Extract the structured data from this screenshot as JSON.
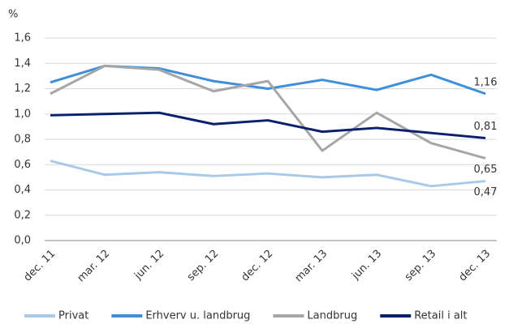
{
  "chart_data": {
    "type": "line",
    "y_label": "%",
    "categories": [
      "dec. 11",
      "mar. 12",
      "jun. 12",
      "sep. 12",
      "dec. 12",
      "mar. 13",
      "jun. 13",
      "sep. 13",
      "dec. 13"
    ],
    "series": [
      {
        "name": "Privat",
        "color": "#a9c9e8",
        "values": [
          0.63,
          0.52,
          0.54,
          0.51,
          0.53,
          0.5,
          0.52,
          0.43,
          0.47
        ],
        "value_labels": [
          null,
          null,
          null,
          null,
          null,
          null,
          null,
          null,
          "0,47"
        ]
      },
      {
        "name": "Erhverv u. landbrug",
        "color": "#3d8fdc",
        "values": [
          1.25,
          1.38,
          1.36,
          1.26,
          1.2,
          1.27,
          1.19,
          1.31,
          1.16
        ],
        "value_labels": [
          null,
          null,
          null,
          null,
          null,
          null,
          null,
          null,
          "1,16"
        ]
      },
      {
        "name": "Landbrug",
        "color": "#a6a6a6",
        "values": [
          1.16,
          1.38,
          1.35,
          1.18,
          1.26,
          0.71,
          1.01,
          0.77,
          0.65
        ],
        "value_labels": [
          null,
          null,
          null,
          null,
          null,
          null,
          null,
          null,
          "0,65"
        ]
      },
      {
        "name": "Retail i alt",
        "color": "#0a1f6e",
        "values": [
          0.99,
          1.0,
          1.01,
          0.92,
          0.95,
          0.86,
          0.89,
          0.85,
          0.81
        ],
        "value_labels": [
          null,
          null,
          null,
          null,
          null,
          null,
          null,
          null,
          "0,81"
        ]
      }
    ],
    "ylim": [
      0,
      1.6
    ],
    "yticks": [
      {
        "value": 0,
        "label": "0,0"
      },
      {
        "value": 0.2,
        "label": "0,2"
      },
      {
        "value": 0.4,
        "label": "0,4"
      },
      {
        "value": 0.6,
        "label": "0,6"
      },
      {
        "value": 0.8,
        "label": "0,8"
      },
      {
        "value": 1.0,
        "label": "1,0"
      },
      {
        "value": 1.2,
        "label": "1,2"
      },
      {
        "value": 1.4,
        "label": "1,4"
      },
      {
        "value": 1.6,
        "label": "1,6"
      }
    ],
    "grid": true,
    "legend": "bottom"
  }
}
